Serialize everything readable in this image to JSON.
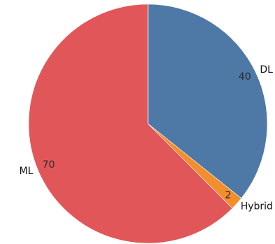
{
  "chart_data": {
    "type": "pie",
    "categories": [
      "DL",
      "Hybrid",
      "ML"
    ],
    "values": [
      40,
      2,
      70
    ],
    "colors": [
      "#4e79a7",
      "#f28e2b",
      "#e15759"
    ],
    "start_angle_deg": 0,
    "direction": "clockwise",
    "legend": "none",
    "title": ""
  }
}
